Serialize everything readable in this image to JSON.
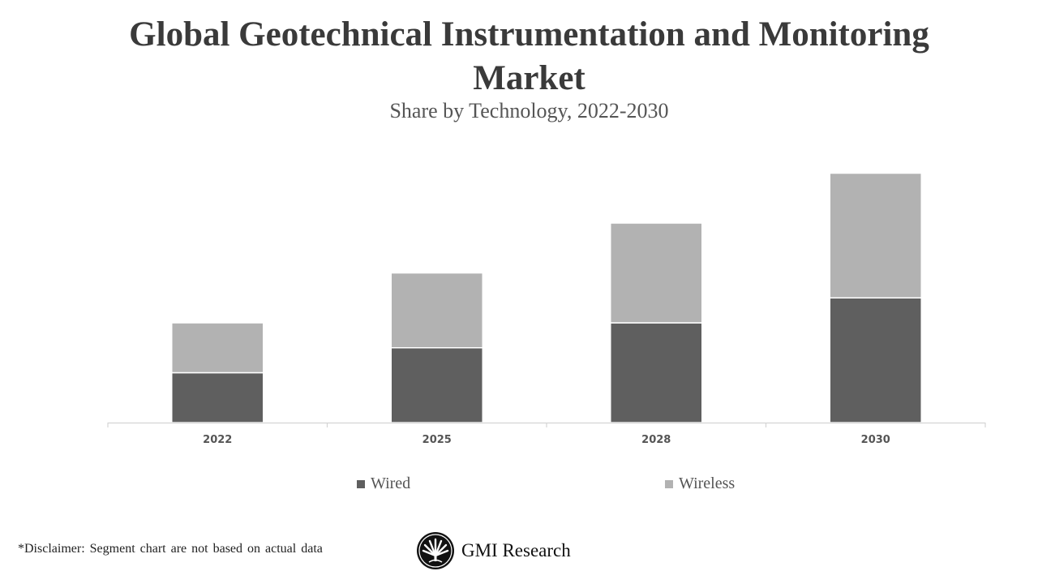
{
  "chart_data": {
    "type": "bar",
    "stacked": true,
    "title": "Global Geotechnical Instrumentation and Monitoring Market",
    "subtitle": "Share by Technology, 2022-2030",
    "categories": [
      "2022",
      "2025",
      "2028",
      "2030"
    ],
    "series": [
      {
        "name": "Wired",
        "values": [
          2,
          3,
          4,
          5
        ],
        "color": "#5f5f5f"
      },
      {
        "name": "Wireless",
        "values": [
          2,
          3,
          4,
          5
        ],
        "color": "#b2b2b2"
      }
    ],
    "xlabel": "",
    "ylabel": "",
    "ylim": [
      0,
      11
    ],
    "y_axis_visible": false,
    "grid": false,
    "legend_position": "bottom"
  },
  "footer": {
    "disclaimer": "*Disclaimer:  Segment chart are not based on actual data",
    "brand": "GMI Research"
  }
}
